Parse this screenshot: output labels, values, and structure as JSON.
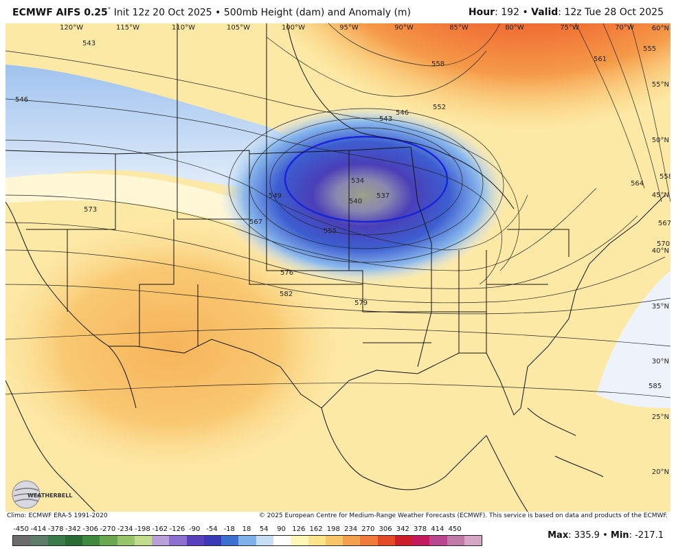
{
  "header": {
    "model": "ECMWF AIFS 0.25",
    "degree": "°",
    "init": "Init 12z 20 Oct 2025",
    "bullet": "•",
    "product": "500mb Height (dam) and Anomaly (m)",
    "hour_label": "Hour",
    "hour": "192",
    "valid_label": "Valid",
    "valid": "12z Tue 28 Oct 2025"
  },
  "map": {
    "longitudes": [
      "120°W",
      "115°W",
      "110°W",
      "105°W",
      "100°W",
      "95°W",
      "90°W",
      "85°W",
      "80°W",
      "75°W",
      "70°W"
    ],
    "latitudes": [
      "60°N",
      "55°N",
      "50°N",
      "45°N",
      "40°N",
      "35°N",
      "30°N",
      "25°N",
      "20°N"
    ],
    "contour_labels": [
      "543",
      "546",
      "558",
      "552",
      "546",
      "543",
      "561",
      "555",
      "573",
      "549",
      "534",
      "537",
      "540",
      "555",
      "567",
      "576",
      "582",
      "579",
      "564",
      "558",
      "567",
      "570",
      "585"
    ],
    "low_center_labels": [
      "534",
      "537",
      "540"
    ],
    "logo_text": "WEATHERBELL"
  },
  "footer": {
    "climo": "Climo: ECMWF ERA-5 1991-2020",
    "copyright": "© 2025 European Centre for Medium-Range Weather Forecasts (ECMWF). This service is based on data and products of the ECMWF."
  },
  "legend": {
    "ticks": [
      "-450",
      "-414",
      "-378",
      "-342",
      "-306",
      "-270",
      "-234",
      "-198",
      "-162",
      "-126",
      "-90",
      "-54",
      "-18",
      "18",
      "54",
      "90",
      "126",
      "162",
      "198",
      "234",
      "270",
      "306",
      "342",
      "378",
      "414",
      "450"
    ],
    "colors": [
      "#6b6b6b",
      "#5d7d6a",
      "#3b7a4a",
      "#2a6a34",
      "#3f8a3c",
      "#6aa84f",
      "#98c46a",
      "#c2dc8e",
      "#b9a0d8",
      "#8c6fcf",
      "#5a3fbf",
      "#3a3ab8",
      "#3d6fd0",
      "#7fb0ea",
      "#c6dff5",
      "#ffffff",
      "#fff6b8",
      "#fde38a",
      "#f9c56a",
      "#f4a14f",
      "#ef7a3a",
      "#e44a26",
      "#cc1e2a",
      "#c4195c",
      "#b9468e",
      "#c07aa8",
      "#d4a8c4"
    ]
  },
  "stats": {
    "max_label": "Max",
    "max": "335.9",
    "sep": "•",
    "min_label": "Min",
    "min": "-217.1"
  },
  "colors": {
    "low_anomaly": "#3a3ab8",
    "high_anomaly": "#cc1e2a",
    "neutral": "#ffffff"
  }
}
